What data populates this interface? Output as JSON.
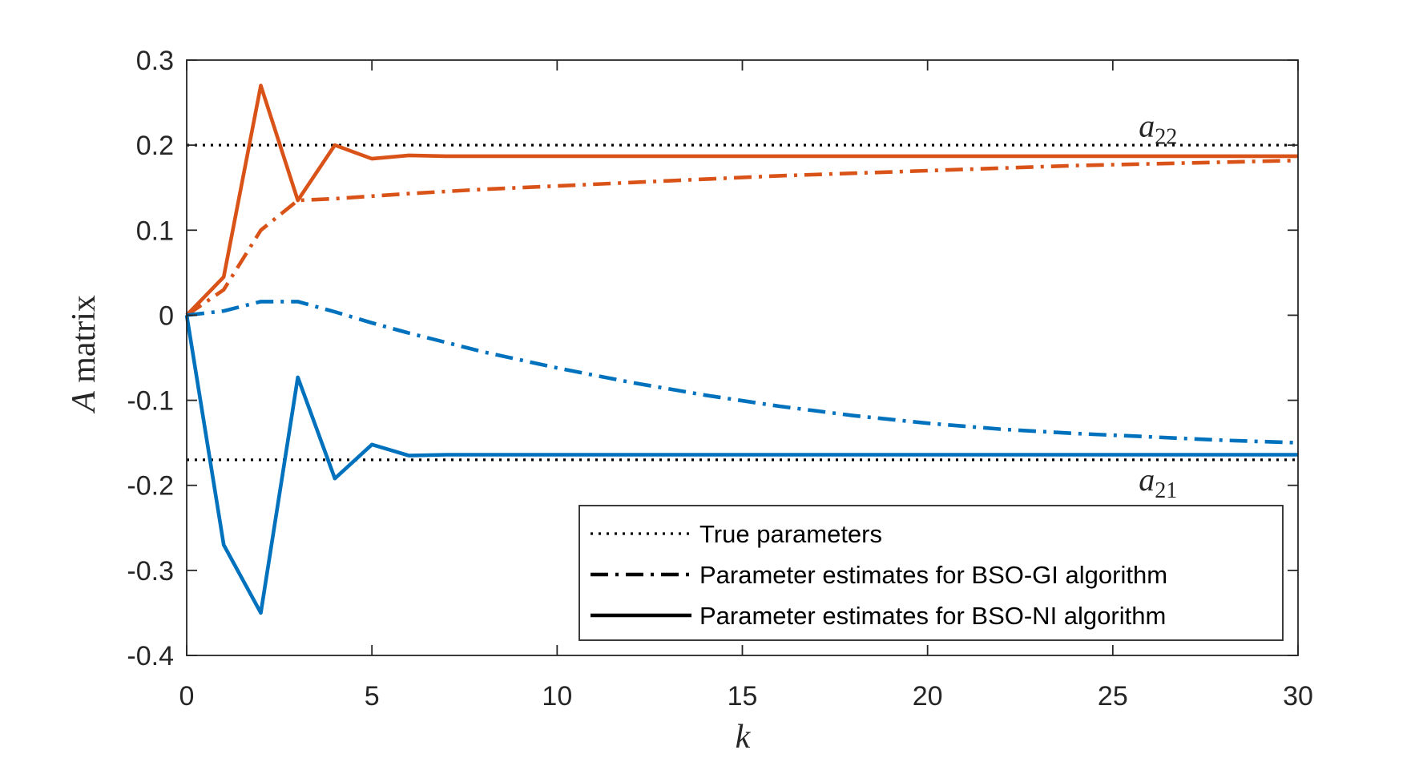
{
  "chart_data": {
    "type": "line",
    "xlabel": "k",
    "ylabel_var": "A",
    "ylabel_rest": " matrix",
    "xlim": [
      0,
      30
    ],
    "ylim": [
      -0.4,
      0.3
    ],
    "xticks": [
      0,
      5,
      10,
      15,
      20,
      25,
      30
    ],
    "yticks": [
      -0.4,
      -0.3,
      -0.2,
      -0.1,
      0,
      0.1,
      0.2,
      0.3
    ],
    "xtick_labels": [
      "0",
      "5",
      "10",
      "15",
      "20",
      "25",
      "30"
    ],
    "ytick_labels": [
      "-0.4",
      "-0.3",
      "-0.2",
      "-0.1",
      "0",
      "0.1",
      "0.2",
      "0.3"
    ],
    "grid": false,
    "legend_position": "bottom-right",
    "legend": [
      {
        "label": "True parameters",
        "style": "dotted",
        "color": "#000000"
      },
      {
        "label": "Parameter estimates for BSO-GI algorithm",
        "style": "dashdot",
        "color": "#000000"
      },
      {
        "label": "Parameter estimates for BSO-NI algorithm",
        "style": "solid",
        "color": "#000000"
      }
    ],
    "annotations": [
      {
        "base": "a",
        "sub": "22",
        "x": 25.7,
        "y": 0.21
      },
      {
        "base": "a",
        "sub": "21",
        "x": 25.7,
        "y": -0.206
      }
    ],
    "series": [
      {
        "param": "a22",
        "kind": "true",
        "style": "dotted",
        "color": "#000000",
        "x": [
          0,
          30
        ],
        "y": [
          0.2,
          0.2
        ]
      },
      {
        "param": "a21",
        "kind": "true",
        "style": "dotted",
        "color": "#000000",
        "x": [
          0,
          30
        ],
        "y": [
          -0.17,
          -0.17
        ]
      },
      {
        "param": "a22",
        "kind": "BSO-GI",
        "style": "dashdot",
        "color": "#d95319",
        "x": [
          0,
          1,
          2,
          3,
          4,
          5,
          6,
          8,
          10,
          12,
          14,
          16,
          18,
          20,
          22,
          24,
          26,
          28,
          30
        ],
        "y": [
          0,
          0.03,
          0.1,
          0.135,
          0.137,
          0.14,
          0.143,
          0.148,
          0.152,
          0.156,
          0.16,
          0.164,
          0.167,
          0.17,
          0.173,
          0.176,
          0.178,
          0.18,
          0.182
        ]
      },
      {
        "param": "a22",
        "kind": "BSO-NI",
        "style": "solid",
        "color": "#d95319",
        "x": [
          0,
          1,
          2,
          3,
          4,
          5,
          6,
          7,
          10,
          15,
          20,
          25,
          30
        ],
        "y": [
          0,
          0.045,
          0.27,
          0.135,
          0.2,
          0.184,
          0.188,
          0.187,
          0.187,
          0.187,
          0.187,
          0.187,
          0.187
        ]
      },
      {
        "param": "a21",
        "kind": "BSO-GI",
        "style": "dashdot",
        "color": "#0072bd",
        "x": [
          0,
          1,
          2,
          3,
          4,
          5,
          6,
          8,
          10,
          12,
          14,
          16,
          18,
          20,
          22,
          24,
          26,
          28,
          30
        ],
        "y": [
          0,
          0.005,
          0.016,
          0.016,
          0.004,
          -0.009,
          -0.021,
          -0.043,
          -0.062,
          -0.079,
          -0.094,
          -0.107,
          -0.118,
          -0.127,
          -0.134,
          -0.139,
          -0.143,
          -0.147,
          -0.15
        ]
      },
      {
        "param": "a21",
        "kind": "BSO-NI",
        "style": "solid",
        "color": "#0072bd",
        "x": [
          0,
          1,
          2,
          3,
          4,
          5,
          6,
          7,
          10,
          15,
          20,
          25,
          30
        ],
        "y": [
          0,
          -0.27,
          -0.35,
          -0.073,
          -0.192,
          -0.152,
          -0.165,
          -0.164,
          -0.164,
          -0.164,
          -0.164,
          -0.164,
          -0.164
        ]
      }
    ]
  }
}
